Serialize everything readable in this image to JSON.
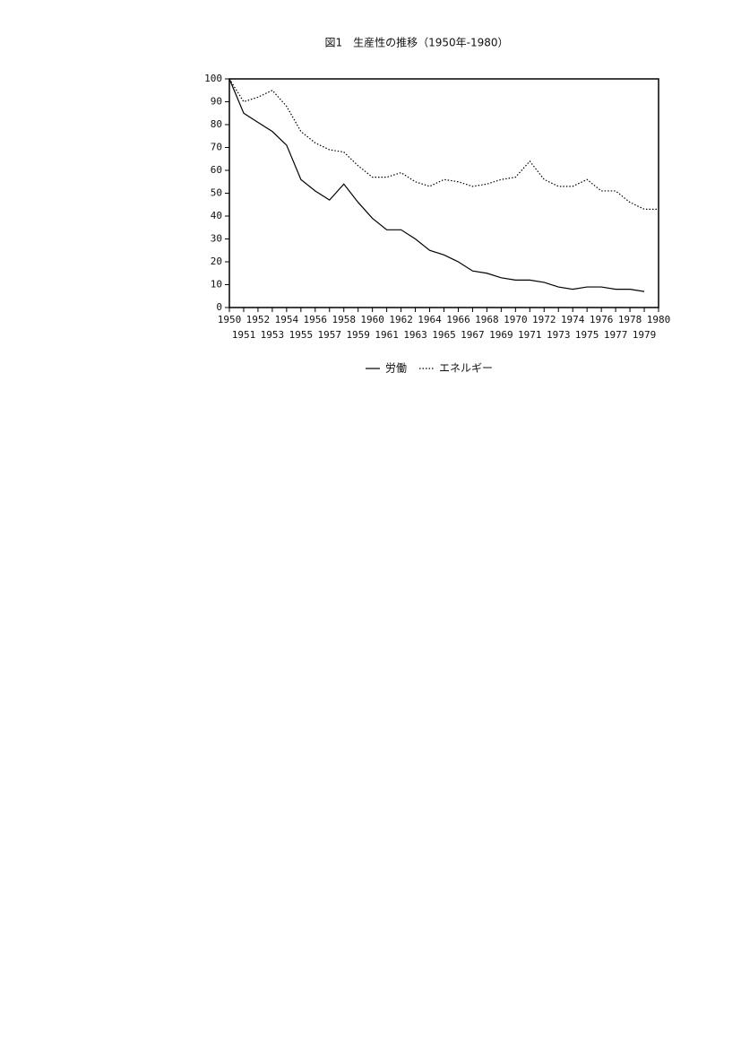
{
  "chart_data": {
    "type": "line",
    "title": "図1　生産性の推移（1950年-1980）",
    "x": [
      1950,
      1951,
      1952,
      1953,
      1954,
      1955,
      1956,
      1957,
      1958,
      1959,
      1960,
      1961,
      1962,
      1963,
      1964,
      1965,
      1966,
      1967,
      1968,
      1969,
      1970,
      1971,
      1972,
      1973,
      1974,
      1975,
      1976,
      1977,
      1978,
      1979,
      1980
    ],
    "xlim": [
      1950,
      1980
    ],
    "xticks": [
      1950,
      1951,
      1952,
      1953,
      1954,
      1955,
      1956,
      1957,
      1958,
      1959,
      1960,
      1961,
      1962,
      1963,
      1964,
      1965,
      1966,
      1967,
      1968,
      1969,
      1970,
      1971,
      1972,
      1973,
      1974,
      1975,
      1976,
      1977,
      1978,
      1979,
      1980
    ],
    "ylim": [
      0,
      100
    ],
    "yticks": [
      0,
      10,
      20,
      30,
      40,
      50,
      60,
      70,
      80,
      90,
      100
    ],
    "grid": false,
    "legend": "bottom",
    "series": [
      {
        "name": "労働",
        "color": "#000000",
        "style": "solid",
        "values": [
          100,
          85,
          81,
          77,
          71,
          56,
          51,
          47,
          54,
          46,
          39,
          34,
          34,
          30,
          25,
          23,
          20,
          16,
          15,
          13,
          12,
          12,
          11,
          9,
          8,
          9,
          9,
          8,
          8,
          7,
          null
        ]
      },
      {
        "name": "エネルギー",
        "color": "#000000",
        "style": "dotted",
        "values": [
          100,
          90,
          92,
          95,
          88,
          77,
          72,
          69,
          68,
          62,
          57,
          57,
          59,
          55,
          53,
          56,
          55,
          53,
          54,
          56,
          57,
          64,
          56,
          53,
          53,
          56,
          51,
          51,
          46,
          43,
          43
        ]
      }
    ]
  }
}
